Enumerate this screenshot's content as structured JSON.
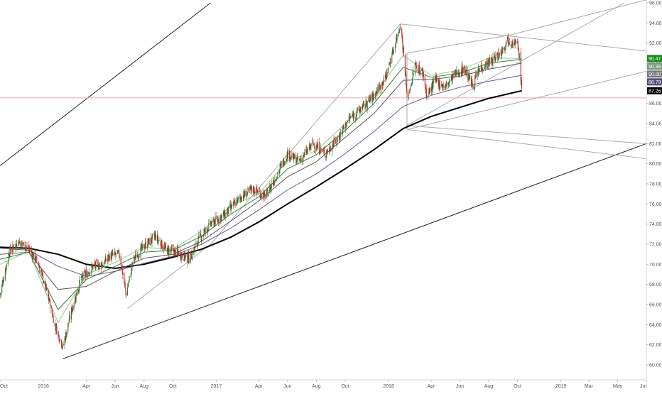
{
  "chart_data": {
    "type": "line",
    "title": "",
    "xlabel": "",
    "ylabel": "",
    "xlim": [
      "2015-10-01",
      "2019-07-01"
    ],
    "ylim": [
      60,
      96
    ],
    "y_ticks": [
      60,
      62,
      64,
      66,
      68,
      70,
      72,
      74,
      76,
      78,
      80,
      82,
      84,
      86,
      88,
      90,
      92,
      94,
      96
    ],
    "y_tick_labels": [
      "60.00",
      "62.00",
      "64.00",
      "66.00",
      "68.00",
      "70.00",
      "72.00",
      "74.00",
      "76.00",
      "78.00",
      "80.00",
      "82.00",
      "84.00",
      "86.00",
      "88.00",
      "90.00",
      "92.00",
      "94.00",
      "96.00"
    ],
    "x_ticks": [
      {
        "label": "Oct",
        "date": "2015-10-01"
      },
      {
        "label": "2016",
        "date": "2016-01-01"
      },
      {
        "label": "Apr",
        "date": "2016-04-01"
      },
      {
        "label": "Jun",
        "date": "2016-06-01"
      },
      {
        "label": "Aug",
        "date": "2016-08-01"
      },
      {
        "label": "Oct",
        "date": "2016-10-01"
      },
      {
        "label": "2017",
        "date": "2017-01-01"
      },
      {
        "label": "Apr",
        "date": "2017-04-01"
      },
      {
        "label": "Jun",
        "date": "2017-06-01"
      },
      {
        "label": "Aug",
        "date": "2017-08-01"
      },
      {
        "label": "Oct",
        "date": "2017-10-01"
      },
      {
        "label": "2018",
        "date": "2018-01-01"
      },
      {
        "label": "Apr",
        "date": "2018-04-01"
      },
      {
        "label": "Jun",
        "date": "2018-06-01"
      },
      {
        "label": "Aug",
        "date": "2018-08-01"
      },
      {
        "label": "Oct",
        "date": "2018-10-01"
      },
      {
        "label": "2019",
        "date": "2019-01-01"
      },
      {
        "label": "Mar",
        "date": "2019-03-01"
      },
      {
        "label": "May",
        "date": "2019-05-01"
      },
      {
        "label": "Jul",
        "date": "2019-07-01"
      }
    ],
    "grid": false,
    "horizontal_line": {
      "y": 86.55,
      "color": "#f4a6a6"
    },
    "candles": {
      "up_color": "#2e7d32",
      "down_color": "#c62828",
      "anchors": [
        [
          "2015-10-01",
          67.0
        ],
        [
          "2015-10-20",
          71.2
        ],
        [
          "2015-11-10",
          72.3
        ],
        [
          "2015-12-01",
          71.5
        ],
        [
          "2015-12-20",
          70.2
        ],
        [
          "2016-01-10",
          67.0
        ],
        [
          "2016-01-25",
          64.0
        ],
        [
          "2016-02-11",
          61.8
        ],
        [
          "2016-03-01",
          65.5
        ],
        [
          "2016-03-20",
          68.5
        ],
        [
          "2016-04-15",
          69.8
        ],
        [
          "2016-05-05",
          70.0
        ],
        [
          "2016-05-20",
          70.8
        ],
        [
          "2016-06-10",
          71.0
        ],
        [
          "2016-06-24",
          67.0
        ],
        [
          "2016-07-10",
          70.5
        ],
        [
          "2016-08-01",
          71.8
        ],
        [
          "2016-08-25",
          72.8
        ],
        [
          "2016-09-15",
          71.5
        ],
        [
          "2016-10-10",
          71.2
        ],
        [
          "2016-11-05",
          70.5
        ],
        [
          "2016-11-25",
          72.5
        ],
        [
          "2016-12-20",
          74.0
        ],
        [
          "2017-01-20",
          75.0
        ],
        [
          "2017-02-20",
          76.6
        ],
        [
          "2017-03-20",
          77.5
        ],
        [
          "2017-04-15",
          76.7
        ],
        [
          "2017-05-10",
          79.0
        ],
        [
          "2017-06-01",
          81.0
        ],
        [
          "2017-06-25",
          80.2
        ],
        [
          "2017-07-25",
          82.0
        ],
        [
          "2017-08-20",
          81.0
        ],
        [
          "2017-09-15",
          82.5
        ],
        [
          "2017-10-10",
          84.5
        ],
        [
          "2017-11-05",
          85.5
        ],
        [
          "2017-12-01",
          86.8
        ],
        [
          "2017-12-25",
          88.5
        ],
        [
          "2018-01-15",
          92.0
        ],
        [
          "2018-01-26",
          93.9
        ],
        [
          "2018-02-05",
          89.5
        ],
        [
          "2018-02-09",
          86.3
        ],
        [
          "2018-02-26",
          89.8
        ],
        [
          "2018-03-15",
          89.0
        ],
        [
          "2018-03-23",
          86.7
        ],
        [
          "2018-04-10",
          88.3
        ],
        [
          "2018-05-01",
          87.6
        ],
        [
          "2018-05-20",
          88.8
        ],
        [
          "2018-06-10",
          89.5
        ],
        [
          "2018-06-28",
          87.8
        ],
        [
          "2018-07-15",
          89.6
        ],
        [
          "2018-08-10",
          90.3
        ],
        [
          "2018-08-28",
          91.2
        ],
        [
          "2018-09-10",
          92.4
        ],
        [
          "2018-09-21",
          92.1
        ],
        [
          "2018-10-01",
          91.8
        ],
        [
          "2018-10-05",
          90.6
        ],
        [
          "2018-10-10",
          87.26
        ]
      ]
    },
    "series": [
      {
        "color": "#000000",
        "width": 2,
        "points": [
          [
            "2015-10-01",
            71.7
          ],
          [
            "2015-12-01",
            71.6
          ],
          [
            "2016-02-01",
            71.0
          ],
          [
            "2016-04-01",
            70.0
          ],
          [
            "2016-06-01",
            69.6
          ],
          [
            "2016-08-01",
            70.0
          ],
          [
            "2016-10-01",
            70.7
          ],
          [
            "2016-12-01",
            71.5
          ],
          [
            "2017-02-01",
            72.7
          ],
          [
            "2017-04-01",
            74.2
          ],
          [
            "2017-06-01",
            76.0
          ],
          [
            "2017-08-01",
            77.7
          ],
          [
            "2017-10-01",
            79.5
          ],
          [
            "2017-12-01",
            81.4
          ],
          [
            "2018-02-01",
            83.5
          ],
          [
            "2018-04-01",
            84.7
          ],
          [
            "2018-06-01",
            85.6
          ],
          [
            "2018-08-01",
            86.5
          ],
          [
            "2018-10-10",
            87.26
          ]
        ]
      },
      {
        "color": "#6a5a8a",
        "width": 1,
        "points": [
          [
            "2015-10-01",
            71.6
          ],
          [
            "2015-12-01",
            71.4
          ],
          [
            "2016-02-01",
            69.8
          ],
          [
            "2016-04-01",
            68.8
          ],
          [
            "2016-06-01",
            69.3
          ],
          [
            "2016-08-01",
            70.1
          ],
          [
            "2016-10-01",
            70.8
          ],
          [
            "2016-12-01",
            72.0
          ],
          [
            "2017-02-01",
            73.6
          ],
          [
            "2017-04-01",
            75.4
          ],
          [
            "2017-06-01",
            77.4
          ],
          [
            "2017-08-01",
            79.0
          ],
          [
            "2017-10-01",
            81.0
          ],
          [
            "2017-12-01",
            83.2
          ],
          [
            "2018-02-01",
            85.7
          ],
          [
            "2018-04-01",
            86.8
          ],
          [
            "2018-06-01",
            87.6
          ],
          [
            "2018-08-01",
            88.2
          ],
          [
            "2018-10-10",
            88.79
          ]
        ]
      },
      {
        "color": "#555555",
        "width": 1,
        "points": [
          [
            "2015-10-01",
            71.0
          ],
          [
            "2015-12-01",
            71.2
          ],
          [
            "2016-02-01",
            67.5
          ],
          [
            "2016-04-01",
            67.8
          ],
          [
            "2016-06-01",
            69.3
          ],
          [
            "2016-08-01",
            70.6
          ],
          [
            "2016-10-01",
            71.0
          ],
          [
            "2016-12-01",
            72.3
          ],
          [
            "2017-02-01",
            74.3
          ],
          [
            "2017-04-01",
            76.3
          ],
          [
            "2017-06-01",
            78.7
          ],
          [
            "2017-08-01",
            80.2
          ],
          [
            "2017-10-01",
            82.6
          ],
          [
            "2017-12-01",
            85.0
          ],
          [
            "2018-02-01",
            88.3
          ],
          [
            "2018-04-01",
            88.4
          ],
          [
            "2018-06-01",
            88.7
          ],
          [
            "2018-08-01",
            89.4
          ],
          [
            "2018-10-10",
            90.0
          ]
        ]
      },
      {
        "color": "#2e7d32",
        "width": 1,
        "points": [
          [
            "2015-10-01",
            70.5
          ],
          [
            "2015-12-01",
            71.2
          ],
          [
            "2016-02-01",
            65.5
          ],
          [
            "2016-04-01",
            68.5
          ],
          [
            "2016-06-01",
            69.8
          ],
          [
            "2016-08-01",
            71.2
          ],
          [
            "2016-10-01",
            71.4
          ],
          [
            "2016-12-01",
            72.8
          ],
          [
            "2017-02-01",
            75.0
          ],
          [
            "2017-04-01",
            76.7
          ],
          [
            "2017-06-01",
            79.5
          ],
          [
            "2017-08-01",
            80.9
          ],
          [
            "2017-10-01",
            83.3
          ],
          [
            "2017-12-01",
            86.0
          ],
          [
            "2018-02-01",
            89.6
          ],
          [
            "2018-04-01",
            88.6
          ],
          [
            "2018-06-01",
            89.0
          ],
          [
            "2018-08-01",
            90.0
          ],
          [
            "2018-10-10",
            90.39
          ]
        ]
      },
      {
        "color": "#8fce8f",
        "width": 1,
        "points": [
          [
            "2015-10-01",
            70.0
          ],
          [
            "2015-12-01",
            71.3
          ],
          [
            "2016-02-01",
            64.2
          ],
          [
            "2016-04-01",
            69.0
          ],
          [
            "2016-06-01",
            70.2
          ],
          [
            "2016-08-01",
            71.7
          ],
          [
            "2016-10-01",
            71.5
          ],
          [
            "2016-12-01",
            73.3
          ],
          [
            "2017-02-01",
            75.8
          ],
          [
            "2017-04-01",
            77.0
          ],
          [
            "2017-06-01",
            80.3
          ],
          [
            "2017-08-01",
            81.3
          ],
          [
            "2017-10-01",
            84.0
          ],
          [
            "2017-12-01",
            86.8
          ],
          [
            "2018-02-01",
            90.8
          ],
          [
            "2018-04-01",
            88.8
          ],
          [
            "2018-06-01",
            89.3
          ],
          [
            "2018-08-01",
            90.5
          ],
          [
            "2018-10-10",
            90.47
          ]
        ]
      }
    ],
    "trend_lines": [
      {
        "color": "#222222",
        "width": 1,
        "from": [
          "2015-10-01",
          79.8
        ],
        "to": [
          "2016-12-20",
          96.0
        ]
      },
      {
        "color": "#222222",
        "width": 1,
        "from": [
          "2016-02-11",
          60.6
        ],
        "to": [
          "2019-07-01",
          82.0
        ]
      },
      {
        "color": "#aaaaaa",
        "width": 1,
        "from": [
          "2016-06-27",
          65.6
        ],
        "to": [
          "2016-12-20",
          72.0
        ]
      },
      {
        "color": "#aaaaaa",
        "width": 1,
        "from": [
          "2016-12-20",
          72.0
        ],
        "to": [
          "2018-01-26",
          93.9
        ]
      },
      {
        "color": "#aaaaaa",
        "width": 1,
        "from": [
          "2018-01-26",
          93.9
        ],
        "to": [
          "2019-07-01",
          91.2
        ]
      },
      {
        "color": "#aaaaaa",
        "width": 1,
        "from": [
          "2018-02-09",
          83.8
        ],
        "to": [
          "2019-07-01",
          82.0
        ]
      },
      {
        "color": "#aaaaaa",
        "width": 1,
        "from": [
          "2018-02-09",
          83.8
        ],
        "to": [
          "2019-05-15",
          96.0
        ]
      },
      {
        "color": "#aaaaaa",
        "width": 1,
        "from": [
          "2018-02-09",
          83.4
        ],
        "to": [
          "2019-07-01",
          80.5
        ]
      },
      {
        "color": "#aaaaaa",
        "width": 1,
        "from": [
          "2018-02-09",
          91.0
        ],
        "to": [
          "2018-09-15",
          92.8
        ]
      },
      {
        "color": "#aaaaaa",
        "width": 1,
        "from": [
          "2018-02-09",
          83.4
        ],
        "to": [
          "2019-07-01",
          89.2
        ]
      },
      {
        "color": "#aaaaaa",
        "width": 1,
        "from": [
          "2018-02-09",
          91.0
        ],
        "to": [
          "2018-02-09",
          83.4
        ]
      },
      {
        "color": "#aaaaaa",
        "width": 1,
        "from": [
          "2018-09-15",
          92.8
        ],
        "to": [
          "2019-07-01",
          96.3
        ]
      }
    ],
    "price_tags": [
      {
        "label": "90.47",
        "y": 90.47,
        "color": "#1b8a1b"
      },
      {
        "label": "90.39",
        "y": 90.39,
        "color": "#7a9a7a"
      },
      {
        "label": "90.00",
        "y": 90.0,
        "color": "#7a7a7a"
      },
      {
        "label": "88.79",
        "y": 88.79,
        "color": "#55507a"
      },
      {
        "label": "87.26",
        "y": 87.26,
        "color": "#000000"
      }
    ]
  }
}
